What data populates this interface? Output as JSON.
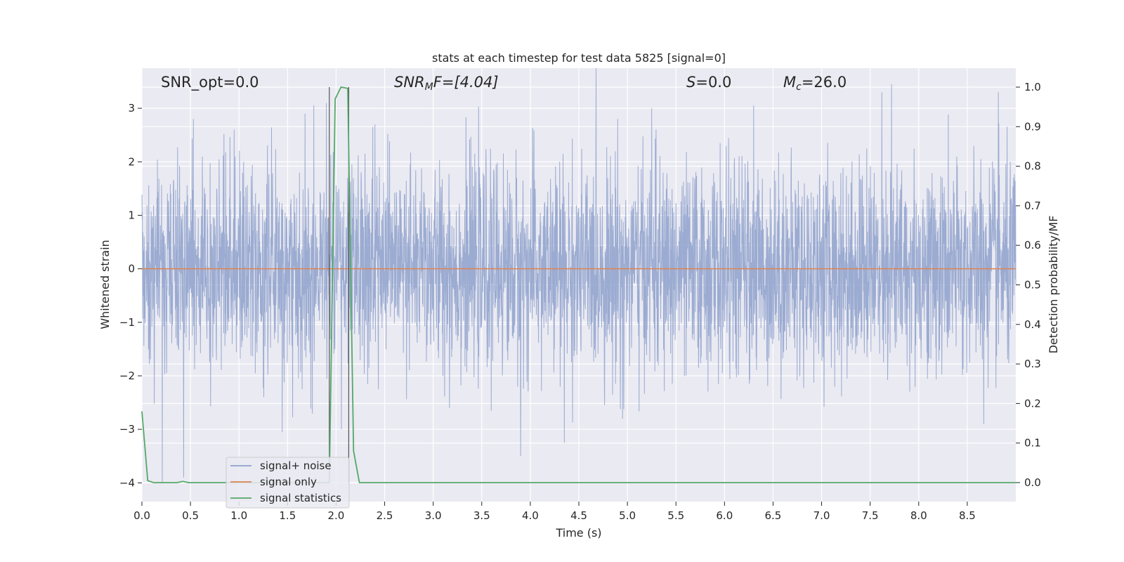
{
  "chart_data": {
    "type": "line",
    "title": "stats at each timestep for test data 5825 [signal=0]",
    "xlabel": "Time (s)",
    "ylabel": "Whitened strain",
    "y2label": "Detection probability/MF",
    "xlim": [
      0.0,
      9.0
    ],
    "ylim": [
      -4.35,
      3.75
    ],
    "y2lim": [
      -0.048,
      1.048
    ],
    "xticks": [
      "0.0",
      "0.5",
      "1.0",
      "1.5",
      "2.0",
      "2.5",
      "3.0",
      "3.5",
      "4.0",
      "4.5",
      "5.0",
      "5.5",
      "6.0",
      "6.5",
      "7.0",
      "7.5",
      "8.0",
      "8.5"
    ],
    "yticks": [
      3,
      2,
      1,
      0,
      -1,
      -2,
      -3,
      -4
    ],
    "y2ticks": [
      "1.0",
      "0.9",
      "0.8",
      "0.7",
      "0.6",
      "0.5",
      "0.4",
      "0.3",
      "0.2",
      "0.1",
      "0.0"
    ],
    "grid": true,
    "legend_position": "lower-left",
    "annotations": {
      "snr_opt": "SNR_opt=0.0",
      "snr_mf_base": "SNR",
      "snr_mf_sub": "M",
      "snr_mf_rest": "F=[4.04]",
      "s_label": "S",
      "s_value": "=0.0",
      "mc_base": "M",
      "mc_sub": "c",
      "mc_value": "=26.0"
    },
    "series": [
      {
        "name": "signal+ noise",
        "color": "#8da0cb",
        "note": "whitened noise, approx. unit variance, sampled densely over 0-9 s",
        "spikes": [
          [
            0.21,
            -4.0
          ],
          [
            0.43,
            -3.9
          ],
          [
            0.53,
            2.8
          ],
          [
            0.95,
            2.6
          ],
          [
            1.68,
            2.9
          ],
          [
            1.9,
            3.1
          ],
          [
            2.4,
            2.7
          ],
          [
            3.9,
            -3.5
          ],
          [
            4.35,
            -3.25
          ],
          [
            4.9,
            2.8
          ],
          [
            4.95,
            -2.8
          ],
          [
            5.25,
            3.0
          ],
          [
            6.3,
            3.05
          ],
          [
            7.72,
            3.45
          ],
          [
            7.62,
            3.3
          ],
          [
            8.67,
            -2.9
          ],
          [
            8.82,
            3.3
          ]
        ]
      },
      {
        "name": "signal only",
        "color": "#dd8452",
        "x": [
          0.0,
          9.0
        ],
        "y": [
          0.0,
          0.0
        ]
      },
      {
        "name": "signal statistics",
        "color": "#55a868",
        "axis": "right",
        "x": [
          0.0,
          0.06,
          0.12,
          0.18,
          0.24,
          0.3,
          0.36,
          0.42,
          0.48,
          0.54,
          0.6,
          1.8,
          1.87,
          1.93,
          1.99,
          2.05,
          2.12,
          2.18,
          2.24,
          2.3,
          9.0
        ],
        "y": [
          0.18,
          0.005,
          0.0,
          0.0,
          0.0,
          0.0,
          0.0,
          0.003,
          0.0,
          0.0,
          0.0,
          0.0,
          0.0,
          0.0,
          0.97,
          1.0,
          0.997,
          0.08,
          0.0,
          0.0,
          0.0
        ]
      }
    ],
    "vlines": [
      1.93,
      2.13
    ]
  }
}
